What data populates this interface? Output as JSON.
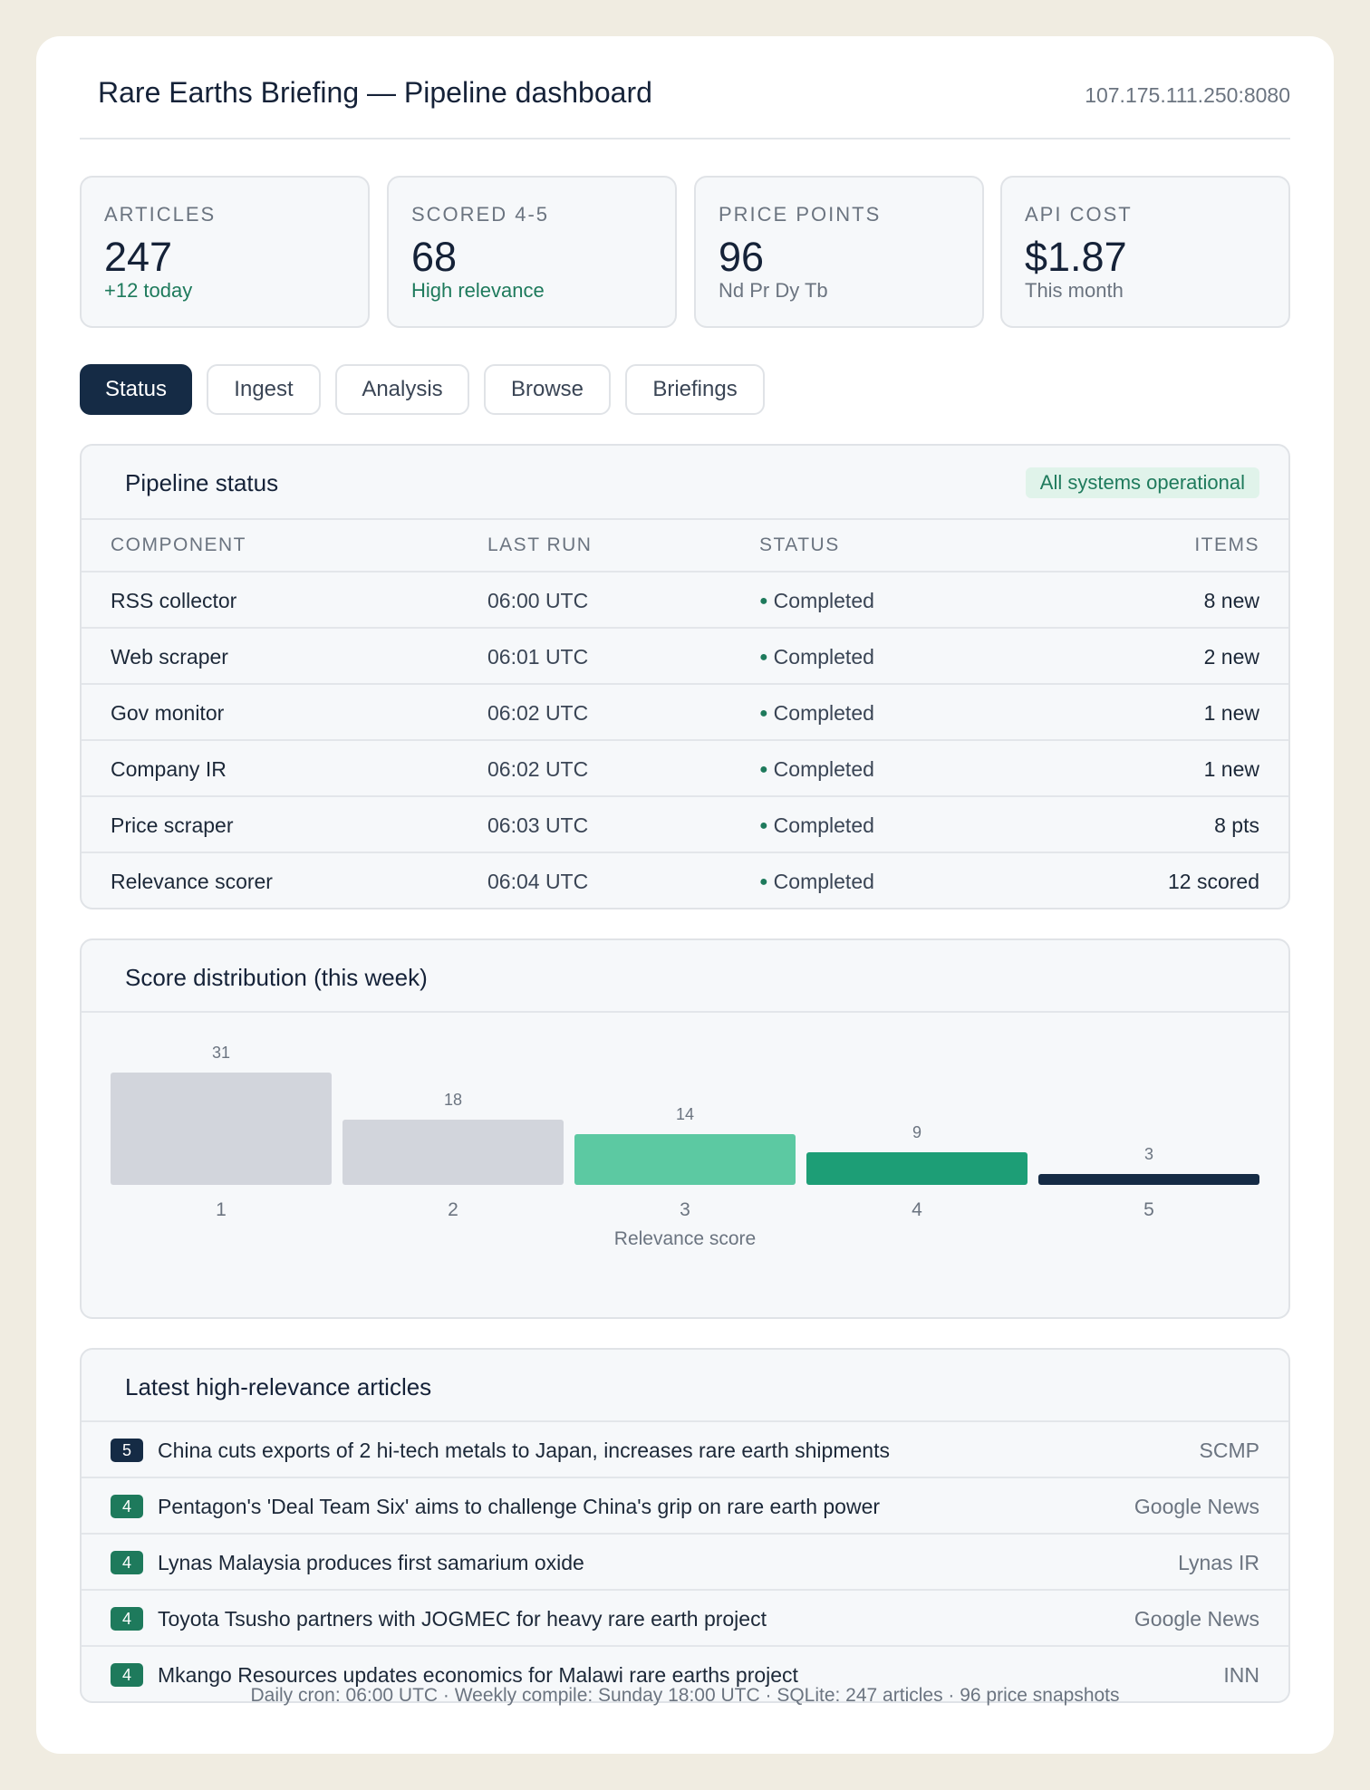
{
  "header": {
    "title": "Rare Earths Briefing — Pipeline dashboard",
    "host": "107.175.111.250:8080"
  },
  "metrics": [
    {
      "label": "ARTICLES",
      "value": "247",
      "sub": "+12 today",
      "sub_color": "green"
    },
    {
      "label": "SCORED 4-5",
      "value": "68",
      "sub": "High relevance",
      "sub_color": "green"
    },
    {
      "label": "PRICE POINTS",
      "value": "96",
      "sub": "Nd Pr Dy Tb",
      "sub_color": "muted"
    },
    {
      "label": "API COST",
      "value": "$1.87",
      "sub": "This month",
      "sub_color": "muted"
    }
  ],
  "tabs": [
    {
      "label": "Status",
      "active": true
    },
    {
      "label": "Ingest",
      "active": false
    },
    {
      "label": "Analysis",
      "active": false
    },
    {
      "label": "Browse",
      "active": false
    },
    {
      "label": "Briefings",
      "active": false
    }
  ],
  "pipeline": {
    "title": "Pipeline status",
    "badge": "All systems operational",
    "columns": [
      "COMPONENT",
      "LAST RUN",
      "STATUS",
      "ITEMS"
    ],
    "rows": [
      {
        "component": "RSS collector",
        "last_run": "06:00 UTC",
        "status": "Completed",
        "items": "8 new"
      },
      {
        "component": "Web scraper",
        "last_run": "06:01 UTC",
        "status": "Completed",
        "items": "2 new"
      },
      {
        "component": "Gov monitor",
        "last_run": "06:02 UTC",
        "status": "Completed",
        "items": "1 new"
      },
      {
        "component": "Company IR",
        "last_run": "06:02 UTC",
        "status": "Completed",
        "items": "1 new"
      },
      {
        "component": "Price scraper",
        "last_run": "06:03 UTC",
        "status": "Completed",
        "items": "8 pts"
      },
      {
        "component": "Relevance scorer",
        "last_run": "06:04 UTC",
        "status": "Completed",
        "items": "12 scored"
      }
    ]
  },
  "distribution": {
    "title": "Score distribution (this week)"
  },
  "chart_data": {
    "type": "bar",
    "categories": [
      "1",
      "2",
      "3",
      "4",
      "5"
    ],
    "values": [
      31,
      18,
      14,
      9,
      3
    ],
    "colors": [
      "#d2d5dc",
      "#d2d5dc",
      "#5cc9a2",
      "#1d9e76",
      "#152b45"
    ],
    "xlabel": "Relevance score",
    "ylabel": "",
    "ylim": [
      0,
      31
    ]
  },
  "articles": {
    "title": "Latest high-relevance articles",
    "items": [
      {
        "score": "5",
        "title": "China cuts exports of 2 hi-tech metals to Japan, increases rare earth shipments",
        "source": "SCMP",
        "color": "#152b45"
      },
      {
        "score": "4",
        "title": "Pentagon's 'Deal Team Six' aims to challenge China's grip on rare earth power",
        "source": "Google News",
        "color": "#1e7a5c"
      },
      {
        "score": "4",
        "title": "Lynas Malaysia produces first samarium oxide",
        "source": "Lynas IR",
        "color": "#1e7a5c"
      },
      {
        "score": "4",
        "title": "Toyota Tsusho partners with JOGMEC for heavy rare earth project",
        "source": "Google News",
        "color": "#1e7a5c"
      },
      {
        "score": "4",
        "title": "Mkango Resources updates economics for Malawi rare earths project",
        "source": "INN",
        "color": "#1e7a5c"
      }
    ]
  },
  "footer": "Daily cron: 06:00 UTC · Weekly compile: Sunday 18:00 UTC · SQLite: 247 articles · 96 price snapshots"
}
